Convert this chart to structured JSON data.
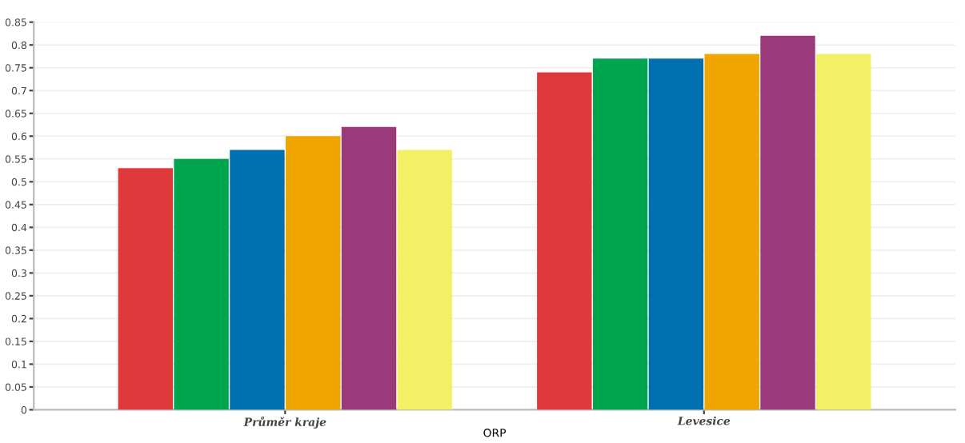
{
  "chart_data": {
    "type": "bar",
    "categories": [
      "Průměr kraje",
      "Levesice"
    ],
    "xlabel": "ORP",
    "series": [
      {
        "color": "#e0393b",
        "values": [
          0.53,
          0.74
        ]
      },
      {
        "color": "#00a550",
        "values": [
          0.55,
          0.77
        ]
      },
      {
        "color": "#0070b0",
        "values": [
          0.57,
          0.77
        ]
      },
      {
        "color": "#f0a500",
        "values": [
          0.6,
          0.78
        ]
      },
      {
        "color": "#9a3a7a",
        "values": [
          0.62,
          0.82
        ]
      },
      {
        "color": "#f4f066",
        "values": [
          0.57,
          0.78
        ]
      }
    ],
    "ylim": [
      0,
      0.85
    ],
    "yticks": [
      0,
      0.05,
      0.1,
      0.15,
      0.2,
      0.25,
      0.3,
      0.35,
      0.4,
      0.45,
      0.5,
      0.55,
      0.6,
      0.65,
      0.7,
      0.75,
      0.8,
      0.85
    ],
    "grid": "y"
  }
}
